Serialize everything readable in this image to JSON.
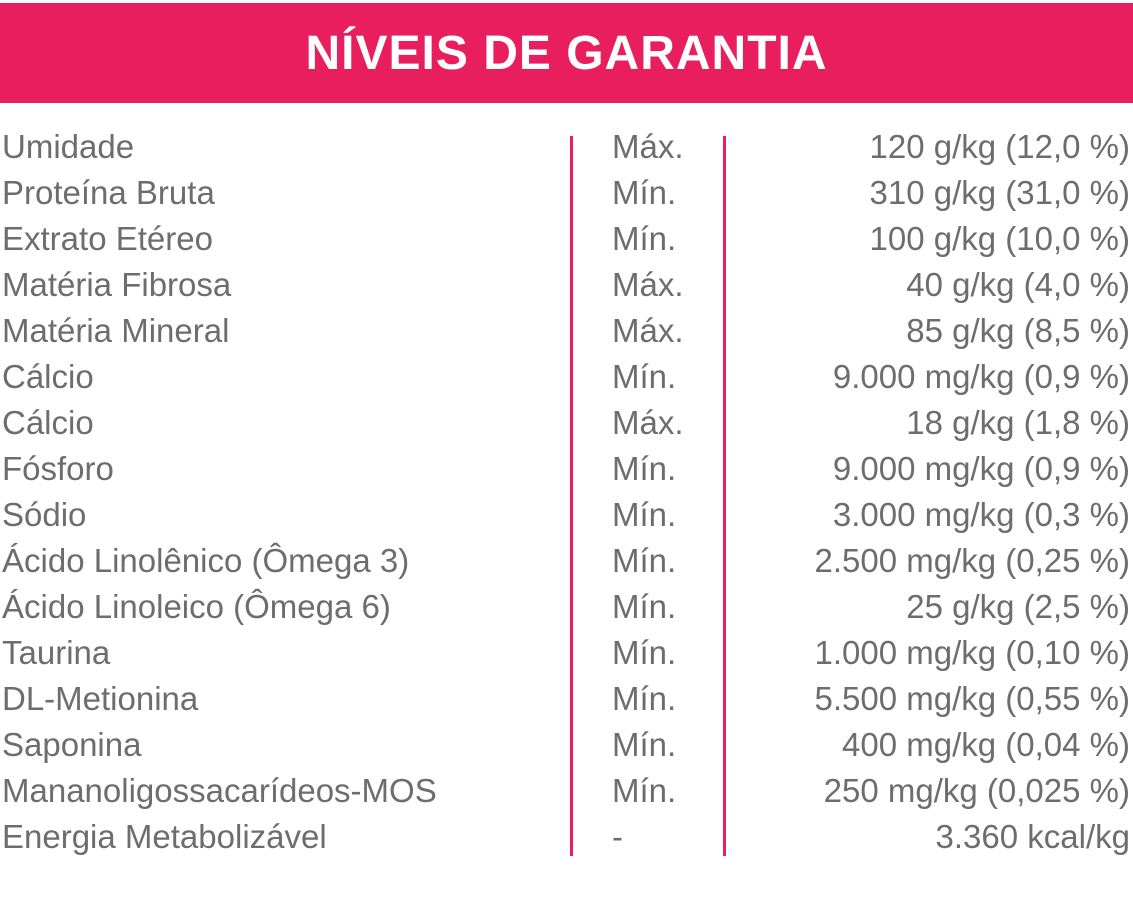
{
  "header": {
    "title": "NÍVEIS DE GARANTIA"
  },
  "colors": {
    "accent": "#e91e5e",
    "text": "#6d6d6d"
  },
  "rows": [
    {
      "name": "Umidade",
      "type": "Máx.",
      "value": "120 g/kg (12,0 %)"
    },
    {
      "name": "Proteína Bruta",
      "type": "Mín.",
      "value": "310 g/kg (31,0 %)"
    },
    {
      "name": "Extrato Etéreo",
      "type": "Mín.",
      "value": "100 g/kg (10,0 %)"
    },
    {
      "name": "Matéria Fibrosa",
      "type": "Máx.",
      "value": "40 g/kg (4,0 %)"
    },
    {
      "name": "Matéria Mineral",
      "type": "Máx.",
      "value": "85 g/kg (8,5 %)"
    },
    {
      "name": "Cálcio",
      "type": "Mín.",
      "value": "9.000 mg/kg (0,9 %)"
    },
    {
      "name": "Cálcio",
      "type": "Máx.",
      "value": "18 g/kg (1,8 %)"
    },
    {
      "name": "Fósforo",
      "type": "Mín.",
      "value": "9.000 mg/kg (0,9 %)"
    },
    {
      "name": "Sódio",
      "type": "Mín.",
      "value": "3.000 mg/kg (0,3 %)"
    },
    {
      "name": "Ácido Linolênico (Ômega 3)",
      "type": "Mín.",
      "value": "2.500 mg/kg (0,25 %)"
    },
    {
      "name": "Ácido Linoleico (Ômega 6)",
      "type": "Mín.",
      "value": "25 g/kg (2,5 %)"
    },
    {
      "name": "Taurina",
      "type": "Mín.",
      "value": "1.000 mg/kg (0,10 %)"
    },
    {
      "name": "DL-Metionina",
      "type": "Mín.",
      "value": "5.500 mg/kg (0,55 %)"
    },
    {
      "name": "Saponina",
      "type": "Mín.",
      "value": "400 mg/kg (0,04 %)"
    },
    {
      "name": "Mananoligossacarídeos-MOS",
      "type": "Mín.",
      "value": "250 mg/kg (0,025 %)"
    },
    {
      "name": "Energia Metabolizável",
      "type": "-",
      "value": "3.360 kcal/kg"
    }
  ]
}
